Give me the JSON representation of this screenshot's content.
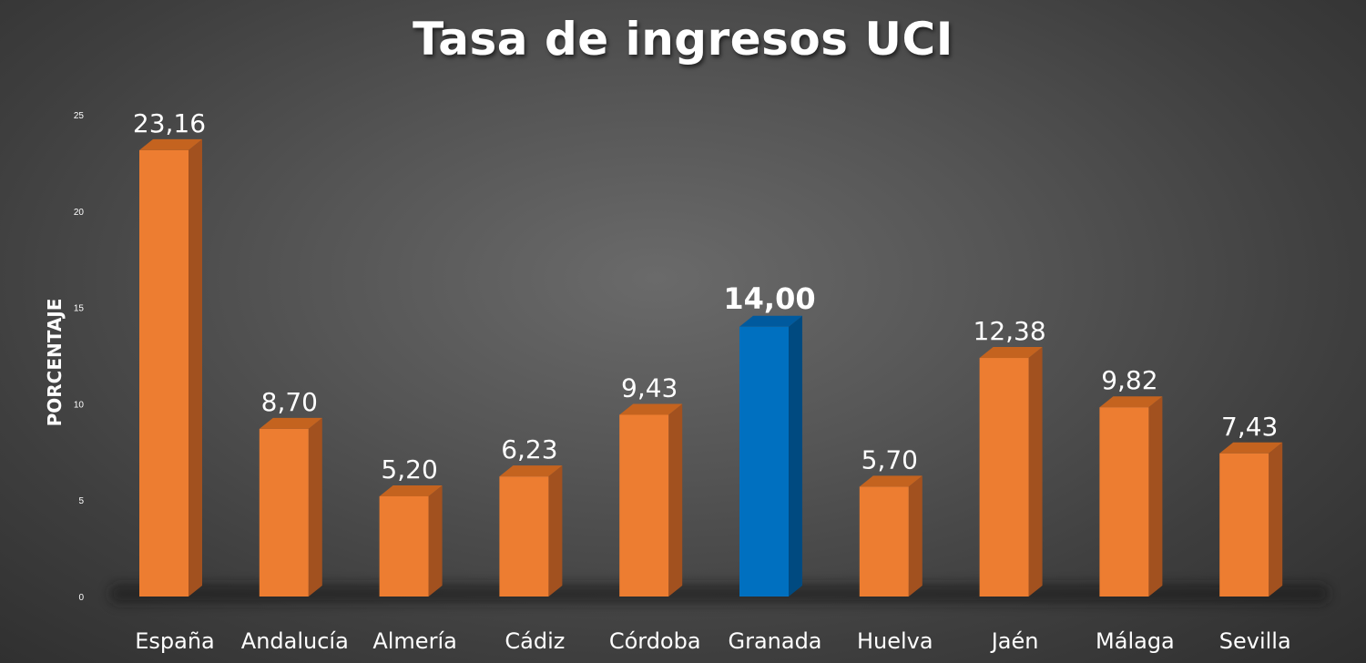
{
  "chart_data": {
    "type": "bar",
    "title": "Tasa de ingresos UCI",
    "ylabel": "PORCENTAJE",
    "xlabel": "",
    "ylim": [
      0,
      25
    ],
    "y_ticks": [
      0,
      5,
      10,
      15,
      20,
      25
    ],
    "y_tick_labels": [
      "0",
      "5",
      "10",
      "15",
      "20",
      "25"
    ],
    "categories": [
      "España",
      "Andalucía",
      "Almería",
      "Cádiz",
      "Córdoba",
      "Granada",
      "Huelva",
      "Jaén",
      "Málaga",
      "Sevilla"
    ],
    "values": [
      23.16,
      8.7,
      5.2,
      6.23,
      9.43,
      14.0,
      5.7,
      12.38,
      9.82,
      7.43
    ],
    "data_labels": [
      "23,16",
      "8,70",
      "5,20",
      "6,23",
      "9,43",
      "14,00",
      "5,70",
      "12,38",
      "9,82",
      "7,43"
    ],
    "highlight_category": "Granada",
    "grid": false,
    "legend": "none",
    "colors": {
      "bar": "#ED7D31",
      "bar_side": "#A2511F",
      "bar_top": "#C4631F",
      "highlight": "#0070C0",
      "highlight_side": "#004A80",
      "highlight_top": "#005A9E",
      "text": "#FFFFFF"
    }
  }
}
